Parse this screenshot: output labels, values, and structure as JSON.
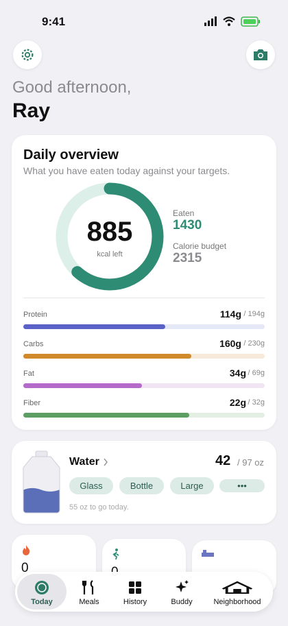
{
  "status_bar": {
    "time": "9:41"
  },
  "greeting": {
    "line": "Good afternoon,",
    "name": "Ray"
  },
  "overview": {
    "title": "Daily overview",
    "subtitle": "What you have eaten today against your targets.",
    "kcal_left": "885",
    "kcal_left_label": "kcal left",
    "eaten_label": "Eaten",
    "eaten": "1430",
    "budget_label": "Calorie budget",
    "budget": "2315",
    "macros": [
      {
        "name": "Protein",
        "amount": "114g",
        "target": "/ 194g"
      },
      {
        "name": "Carbs",
        "amount": "160g",
        "target": "/ 230g"
      },
      {
        "name": "Fat",
        "amount": "34g",
        "target": "/ 69g"
      },
      {
        "name": "Fiber",
        "amount": "22g",
        "target": "/ 32g"
      }
    ]
  },
  "water": {
    "title": "Water",
    "amount": "42",
    "target": "/ 97 oz",
    "buttons": [
      "Glass",
      "Bottle",
      "Large",
      "•••"
    ],
    "hint": "55 oz to go today."
  },
  "stats": [
    "0",
    "0"
  ],
  "tabs": [
    "Today",
    "Meals",
    "History",
    "Buddy",
    "Neighborhood"
  ]
}
